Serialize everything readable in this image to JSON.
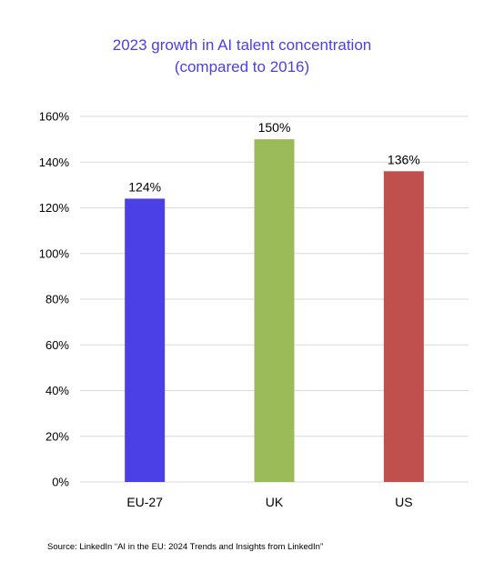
{
  "chart_data": {
    "type": "bar",
    "title": "2023 growth in AI talent concentration",
    "subtitle": "(compared to 2016)",
    "categories": [
      "EU-27",
      "UK",
      "US"
    ],
    "values": [
      124,
      150,
      136
    ],
    "value_labels": [
      "124%",
      "150%",
      "136%"
    ],
    "bar_colors": [
      "#4b40e6",
      "#9bbb59",
      "#c0504d"
    ],
    "ylim": [
      0,
      160
    ],
    "y_ticks": [
      0,
      20,
      40,
      60,
      80,
      100,
      120,
      140,
      160
    ],
    "y_tick_labels": [
      "0%",
      "20%",
      "40%",
      "60%",
      "80%",
      "100%",
      "120%",
      "140%",
      "160%"
    ],
    "grid": true,
    "legend": "none"
  },
  "source": "Source: LinkedIn “AI in the EU: 2024 Trends and Insights from LinkedIn”"
}
